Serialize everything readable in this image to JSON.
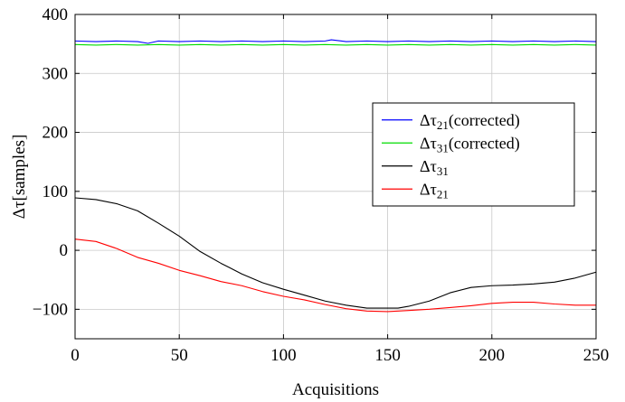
{
  "chart_data": {
    "type": "line",
    "xlabel": "Acquisitions",
    "ylabel": "Δτ[samples]",
    "xlim": [
      0,
      250
    ],
    "ylim": [
      -150,
      400
    ],
    "xticks": [
      "0",
      "50",
      "100",
      "150",
      "200",
      "250"
    ],
    "xtick_values": [
      0,
      50,
      100,
      150,
      200,
      250
    ],
    "yticks": [
      "−100",
      "0",
      "100",
      "200",
      "300",
      "400"
    ],
    "ytick_values": [
      -100,
      0,
      100,
      200,
      300,
      400
    ],
    "grid": true,
    "legend_position": "right",
    "series": [
      {
        "name": "Δτ21(corrected)",
        "legend_main": "Δτ",
        "legend_sub": "21",
        "legend_suffix": "(corrected)",
        "color": "#0000ff",
        "x": [
          0,
          10,
          20,
          30,
          35,
          40,
          50,
          60,
          70,
          80,
          90,
          100,
          110,
          120,
          123,
          130,
          140,
          150,
          160,
          170,
          180,
          190,
          200,
          210,
          220,
          230,
          240,
          250
        ],
        "y": [
          355,
          354,
          355,
          354,
          351,
          355,
          354,
          355,
          354,
          355,
          354,
          355,
          354,
          355,
          357,
          354,
          355,
          354,
          355,
          354,
          355,
          354,
          355,
          354,
          355,
          354,
          355,
          354
        ]
      },
      {
        "name": "Δτ31(corrected)",
        "legend_main": "Δτ",
        "legend_sub": "31",
        "legend_suffix": "(corrected)",
        "color": "#00dd00",
        "x": [
          0,
          10,
          20,
          30,
          40,
          50,
          60,
          70,
          80,
          90,
          100,
          110,
          120,
          130,
          140,
          150,
          160,
          170,
          180,
          190,
          200,
          210,
          220,
          230,
          240,
          250
        ],
        "y": [
          349,
          348,
          349,
          348,
          349,
          348,
          349,
          348,
          349,
          348,
          349,
          348,
          349,
          348,
          349,
          348,
          349,
          348,
          349,
          348,
          349,
          348,
          349,
          348,
          349,
          348
        ]
      },
      {
        "name": "Δτ31",
        "legend_main": "Δτ",
        "legend_sub": "31",
        "legend_suffix": "",
        "color": "#000000",
        "x": [
          0,
          10,
          20,
          30,
          40,
          50,
          60,
          70,
          80,
          90,
          100,
          110,
          120,
          130,
          140,
          150,
          155,
          160,
          170,
          180,
          190,
          200,
          210,
          220,
          230,
          240,
          250
        ],
        "y": [
          89,
          86,
          79,
          67,
          46,
          24,
          -2,
          -22,
          -40,
          -55,
          -66,
          -76,
          -86,
          -93,
          -98,
          -98,
          -98,
          -95,
          -86,
          -72,
          -63,
          -60,
          -59,
          -57,
          -54,
          -47,
          -37
        ]
      },
      {
        "name": "Δτ21",
        "legend_main": "Δτ",
        "legend_sub": "21",
        "legend_suffix": "",
        "color": "#ff0000",
        "x": [
          0,
          10,
          20,
          30,
          40,
          50,
          60,
          70,
          80,
          90,
          100,
          110,
          120,
          130,
          140,
          150,
          160,
          170,
          180,
          190,
          200,
          210,
          220,
          230,
          240,
          250
        ],
        "y": [
          19,
          15,
          3,
          -12,
          -22,
          -34,
          -43,
          -53,
          -60,
          -70,
          -78,
          -84,
          -92,
          -99,
          -103,
          -104,
          -102,
          -100,
          -97,
          -94,
          -90,
          -88,
          -88,
          -91,
          -93,
          -93
        ]
      }
    ],
    "legend_order": [
      0,
      1,
      2,
      3
    ]
  }
}
